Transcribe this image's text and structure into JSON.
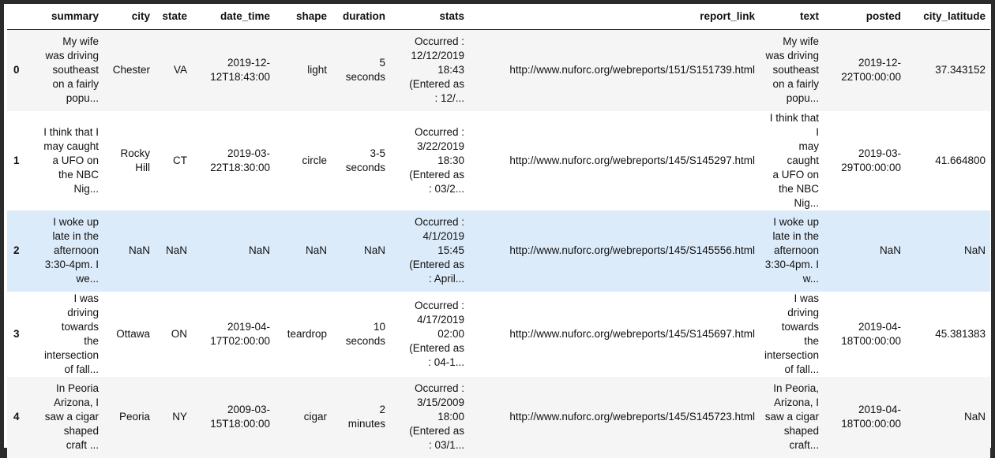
{
  "table": {
    "columns": [
      "",
      "summary",
      "city",
      "state",
      "date_time",
      "shape",
      "duration",
      "stats",
      "report_link",
      "text",
      "posted",
      "city_latitude"
    ],
    "rows": [
      {
        "index": "0",
        "summary": "My wife\nwas driving\nsoutheast\non a fairly\npopu...",
        "city": "Chester",
        "state": "VA",
        "date_time": "2019-12-\n12T18:43:00",
        "shape": "light",
        "duration": "5\nseconds",
        "stats": "Occurred :\n12/12/2019\n18:43\n(Entered as\n: 12/...",
        "report_link": "http://www.nuforc.org/webreports/151/S151739.html",
        "text": "My wife\nwas driving\nsoutheast\non a fairly\npopu...",
        "posted": "2019-12-\n22T00:00:00",
        "city_latitude": "37.343152"
      },
      {
        "index": "1",
        "summary": "I think that I\nmay caught\na UFO on\nthe NBC\nNig...",
        "city": "Rocky\nHill",
        "state": "CT",
        "date_time": "2019-03-\n22T18:30:00",
        "shape": "circle",
        "duration": "3-5\nseconds",
        "stats": "Occurred :\n3/22/2019\n18:30\n(Entered as\n: 03/2...",
        "report_link": "http://www.nuforc.org/webreports/145/S145297.html",
        "text": "I think that I\nmay caught\na UFO on\nthe NBC\nNig...",
        "posted": "2019-03-\n29T00:00:00",
        "city_latitude": "41.664800"
      },
      {
        "index": "2",
        "summary": "I woke up\nlate in the\nafternoon\n3:30-4pm. I\nwe...",
        "city": "NaN",
        "state": "NaN",
        "date_time": "NaN",
        "shape": "NaN",
        "duration": "NaN",
        "stats": "Occurred :\n4/1/2019\n15:45\n(Entered as\n: April...",
        "report_link": "http://www.nuforc.org/webreports/145/S145556.html",
        "text": "I woke up\nlate in the\nafternoon\n3:30-4pm. I\nw...",
        "posted": "NaN",
        "city_latitude": "NaN"
      },
      {
        "index": "3",
        "summary": "I was\ndriving\ntowards\nthe\nintersection\nof fall...",
        "city": "Ottawa",
        "state": "ON",
        "date_time": "2019-04-\n17T02:00:00",
        "shape": "teardrop",
        "duration": "10\nseconds",
        "stats": "Occurred :\n4/17/2019\n02:00\n(Entered as\n: 04-1...",
        "report_link": "http://www.nuforc.org/webreports/145/S145697.html",
        "text": "I was\ndriving\ntowards\nthe\nintersection\nof fall...",
        "posted": "2019-04-\n18T00:00:00",
        "city_latitude": "45.381383"
      },
      {
        "index": "4",
        "summary": "In Peoria\nArizona, I\nsaw a cigar\nshaped\ncraft ...",
        "city": "Peoria",
        "state": "NY",
        "date_time": "2009-03-\n15T18:00:00",
        "shape": "cigar",
        "duration": "2\nminutes",
        "stats": "Occurred :\n3/15/2009\n18:00\n(Entered as\n: 03/1...",
        "report_link": "http://www.nuforc.org/webreports/145/S145723.html",
        "text": "In Peoria,\nArizona, I\nsaw a cigar\nshaped\ncraft...",
        "posted": "2019-04-\n18T00:00:00",
        "city_latitude": "NaN"
      }
    ]
  },
  "colors": {
    "odd_row": "#f5f5f5",
    "even_row": "#ffffff",
    "hover_row": "#dcebfa",
    "window_border": "#2b2b2b"
  }
}
